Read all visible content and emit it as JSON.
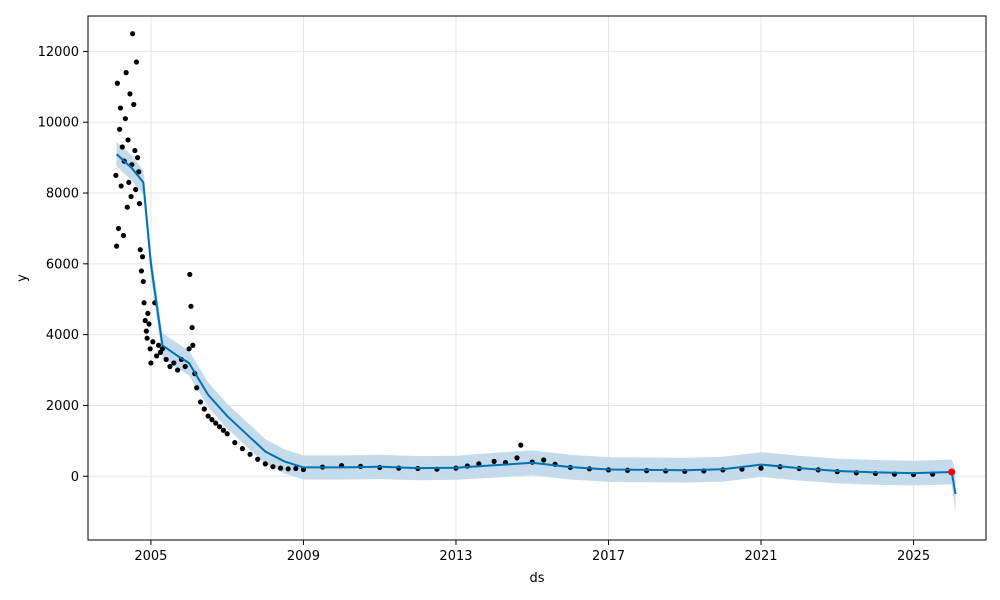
{
  "chart_data": {
    "type": "scatter",
    "title": "",
    "xlabel": "ds",
    "ylabel": "y",
    "xlim": [
      2003.35,
      2026.9
    ],
    "ylim": [
      -1800,
      13000
    ],
    "x_ticks": [
      2005,
      2009,
      2013,
      2017,
      2021,
      2025
    ],
    "y_ticks": [
      0,
      2000,
      4000,
      6000,
      8000,
      10000,
      12000
    ],
    "grid": true,
    "legend": "none",
    "colors": {
      "points": "#000000",
      "forecast_line": "#0072B2",
      "uncertainty_band": "#c3dbeb",
      "highlight_point": "#ff0000",
      "grid": "#e6e6e6",
      "axes": "#000000"
    },
    "forecast": {
      "x": [
        2004.1,
        2004.5,
        2004.8,
        2005.0,
        2005.3,
        2005.7,
        2006.0,
        2006.5,
        2007.0,
        2007.5,
        2008.0,
        2008.5,
        2009.0,
        2010.0,
        2011.0,
        2012.0,
        2013.0,
        2014.0,
        2015.0,
        2016.0,
        2017.0,
        2018.0,
        2019.0,
        2020.0,
        2021.0,
        2022.0,
        2023.0,
        2024.0,
        2025.0,
        2026.0,
        2026.1
      ],
      "y": [
        9100,
        8700,
        8300,
        6000,
        3700,
        3400,
        3200,
        2300,
        1700,
        1200,
        700,
        420,
        250,
        250,
        270,
        230,
        240,
        310,
        380,
        260,
        190,
        180,
        170,
        200,
        330,
        230,
        150,
        110,
        90,
        120,
        -500
      ],
      "lower": [
        8750,
        8350,
        7950,
        5650,
        3350,
        3050,
        2850,
        1950,
        1350,
        850,
        350,
        80,
        -90,
        -90,
        -80,
        -110,
        -100,
        -40,
        30,
        -90,
        -160,
        -170,
        -180,
        -150,
        -20,
        -120,
        -200,
        -240,
        -260,
        -230,
        -1050
      ],
      "upper": [
        9450,
        9050,
        8650,
        6350,
        4050,
        3750,
        3550,
        2650,
        2050,
        1550,
        1050,
        760,
        590,
        590,
        610,
        570,
        580,
        660,
        730,
        610,
        540,
        530,
        520,
        550,
        680,
        580,
        500,
        460,
        440,
        470,
        150
      ]
    },
    "observed": {
      "x": [
        2004.08,
        2004.1,
        2004.12,
        2004.15,
        2004.18,
        2004.2,
        2004.22,
        2004.25,
        2004.28,
        2004.3,
        2004.33,
        2004.35,
        2004.38,
        2004.4,
        2004.42,
        2004.45,
        2004.48,
        2004.5,
        2004.52,
        2004.55,
        2004.58,
        2004.6,
        2004.62,
        2004.65,
        2004.68,
        2004.7,
        2004.72,
        2004.75,
        2004.78,
        2004.8,
        2004.82,
        2004.85,
        2004.88,
        2004.9,
        2004.92,
        2004.95,
        2004.98,
        2005.0,
        2005.05,
        2005.1,
        2005.15,
        2005.2,
        2005.25,
        2005.3,
        2005.4,
        2005.5,
        2005.6,
        2005.7,
        2005.8,
        2005.9,
        2006.0,
        2006.02,
        2006.05,
        2006.08,
        2006.1,
        2006.15,
        2006.2,
        2006.3,
        2006.4,
        2006.5,
        2006.6,
        2006.7,
        2006.8,
        2006.9,
        2007.0,
        2007.2,
        2007.4,
        2007.6,
        2007.8,
        2008.0,
        2008.2,
        2008.4,
        2008.6,
        2008.8,
        2009.0,
        2009.5,
        2010.0,
        2010.5,
        2011.0,
        2011.5,
        2012.0,
        2012.5,
        2013.0,
        2013.3,
        2013.6,
        2014.0,
        2014.3,
        2014.6,
        2014.7,
        2015.0,
        2015.3,
        2015.6,
        2016.0,
        2016.5,
        2017.0,
        2017.5,
        2018.0,
        2018.5,
        2019.0,
        2019.5,
        2020.0,
        2020.5,
        2021.0,
        2021.5,
        2022.0,
        2022.5,
        2023.0,
        2023.5,
        2024.0,
        2024.5,
        2025.0,
        2025.5,
        2026.0
      ],
      "y": [
        8500,
        6500,
        11100,
        7000,
        9800,
        10400,
        8200,
        9300,
        6800,
        8900,
        10100,
        11400,
        7600,
        9500,
        8300,
        10800,
        7900,
        8800,
        12500,
        10500,
        9200,
        8100,
        11700,
        9000,
        8600,
        7700,
        6400,
        5800,
        6200,
        5500,
        4900,
        4400,
        4100,
        3900,
        4600,
        4300,
        3600,
        3200,
        3800,
        4900,
        3400,
        3700,
        3500,
        3600,
        3300,
        3100,
        3200,
        3000,
        3300,
        3100,
        3600,
        5700,
        4800,
        4200,
        3700,
        2900,
        2500,
        2100,
        1900,
        1700,
        1600,
        1500,
        1400,
        1300,
        1200,
        950,
        780,
        620,
        480,
        350,
        270,
        230,
        210,
        220,
        190,
        260,
        300,
        280,
        250,
        230,
        220,
        200,
        230,
        290,
        350,
        420,
        390,
        520,
        880,
        400,
        460,
        340,
        250,
        210,
        180,
        170,
        160,
        150,
        140,
        150,
        180,
        200,
        230,
        270,
        220,
        180,
        130,
        100,
        80,
        60,
        50,
        60,
        100
      ]
    },
    "highlight": {
      "x": 2026.0,
      "y": 120
    }
  }
}
